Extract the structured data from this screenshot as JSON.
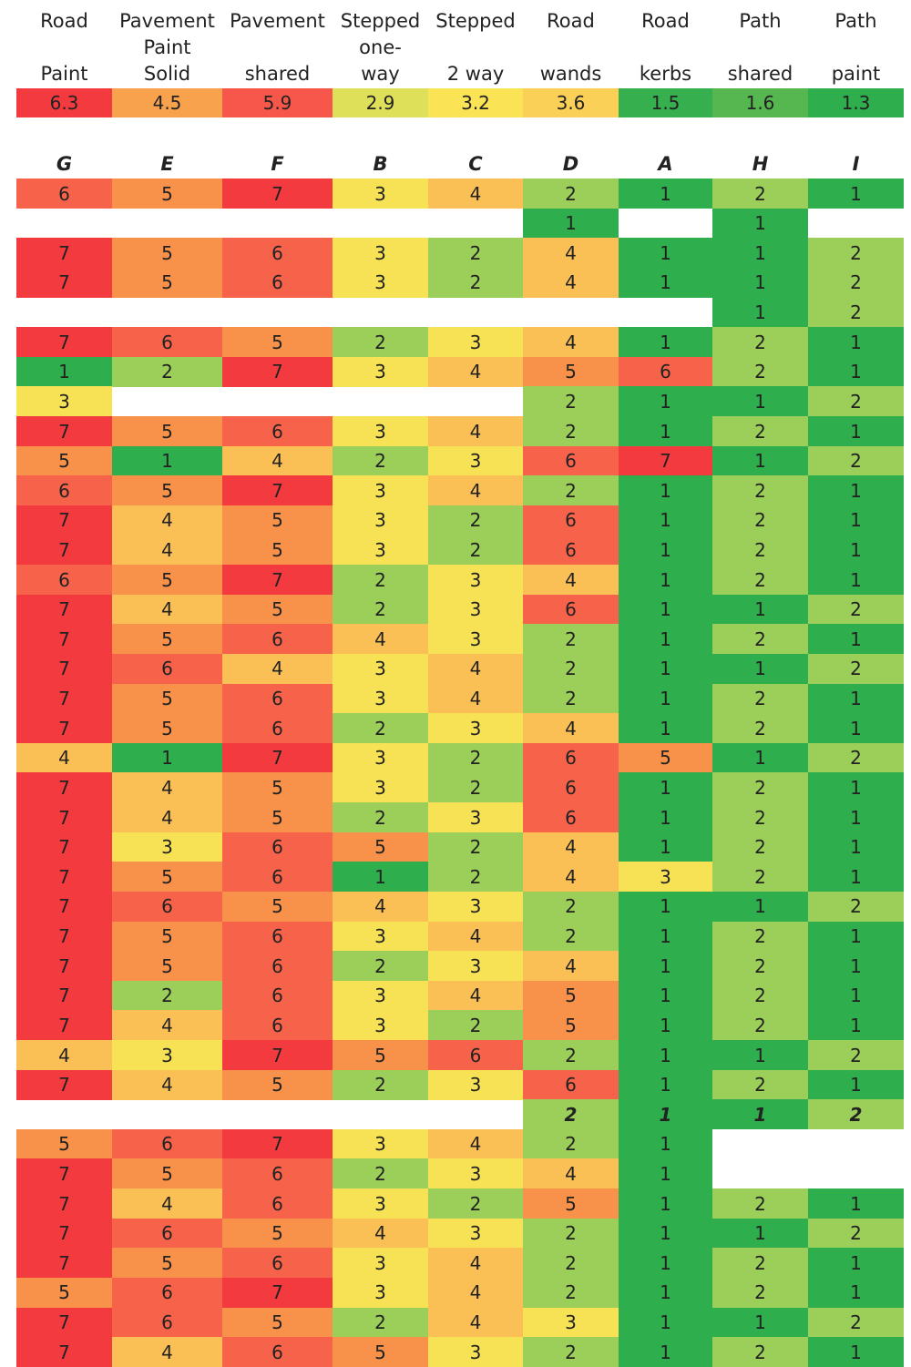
{
  "chart_data": {
    "type": "heatmap",
    "columns": [
      {
        "header": [
          "Road",
          "",
          "Paint"
        ],
        "average": "6.3",
        "letter": "G"
      },
      {
        "header": [
          "Pavement",
          "Paint",
          "Solid"
        ],
        "average": "4.5",
        "letter": "E"
      },
      {
        "header": [
          "Pavement",
          "",
          "shared"
        ],
        "average": "5.9",
        "letter": "F"
      },
      {
        "header": [
          "Stepped",
          "one-",
          "way"
        ],
        "average": "2.9",
        "letter": "B"
      },
      {
        "header": [
          "Stepped",
          "",
          "2 way"
        ],
        "average": "3.2",
        "letter": "C"
      },
      {
        "header": [
          "Road",
          "",
          "wands"
        ],
        "average": "3.6",
        "letter": "D"
      },
      {
        "header": [
          "Road",
          "",
          "kerbs"
        ],
        "average": "1.5",
        "letter": "A"
      },
      {
        "header": [
          "Path",
          "",
          "shared"
        ],
        "average": "1.6",
        "letter": "H"
      },
      {
        "header": [
          "Path",
          "",
          "paint"
        ],
        "average": "1.3",
        "letter": "I"
      }
    ],
    "rows": [
      [
        6,
        5,
        7,
        3,
        4,
        2,
        1,
        2,
        1
      ],
      [
        null,
        null,
        null,
        null,
        null,
        1,
        null,
        1,
        null
      ],
      [
        7,
        5,
        6,
        3,
        2,
        4,
        1,
        1,
        2
      ],
      [
        7,
        5,
        6,
        3,
        2,
        4,
        1,
        1,
        2
      ],
      [
        null,
        null,
        null,
        null,
        null,
        null,
        null,
        1,
        2
      ],
      [
        7,
        6,
        5,
        2,
        3,
        4,
        1,
        2,
        1
      ],
      [
        1,
        2,
        7,
        3,
        4,
        5,
        6,
        2,
        1
      ],
      [
        3,
        null,
        null,
        null,
        null,
        2,
        1,
        1,
        2
      ],
      [
        7,
        5,
        6,
        3,
        4,
        2,
        1,
        2,
        1
      ],
      [
        5,
        1,
        4,
        2,
        3,
        6,
        7,
        1,
        2
      ],
      [
        6,
        5,
        7,
        3,
        4,
        2,
        1,
        2,
        1
      ],
      [
        7,
        4,
        5,
        3,
        2,
        6,
        1,
        2,
        1
      ],
      [
        7,
        4,
        5,
        3,
        2,
        6,
        1,
        2,
        1
      ],
      [
        6,
        5,
        7,
        2,
        3,
        4,
        1,
        2,
        1
      ],
      [
        7,
        4,
        5,
        2,
        3,
        6,
        1,
        1,
        2
      ],
      [
        7,
        5,
        6,
        4,
        3,
        2,
        1,
        2,
        1
      ],
      [
        7,
        6,
        4,
        3,
        4,
        2,
        1,
        1,
        2
      ],
      [
        7,
        5,
        6,
        3,
        4,
        2,
        1,
        2,
        1
      ],
      [
        7,
        5,
        6,
        2,
        3,
        4,
        1,
        2,
        1
      ],
      [
        4,
        1,
        7,
        3,
        2,
        6,
        5,
        1,
        2
      ],
      [
        7,
        4,
        5,
        3,
        2,
        6,
        1,
        2,
        1
      ],
      [
        7,
        4,
        5,
        2,
        3,
        6,
        1,
        2,
        1
      ],
      [
        7,
        3,
        6,
        5,
        2,
        4,
        1,
        2,
        1
      ],
      [
        7,
        5,
        6,
        1,
        2,
        4,
        3,
        2,
        1
      ],
      [
        7,
        6,
        5,
        4,
        3,
        2,
        1,
        1,
        2
      ],
      [
        7,
        5,
        6,
        3,
        4,
        2,
        1,
        2,
        1
      ],
      [
        7,
        5,
        6,
        2,
        3,
        4,
        1,
        2,
        1
      ],
      [
        7,
        2,
        6,
        3,
        4,
        5,
        1,
        2,
        1
      ],
      [
        7,
        4,
        6,
        3,
        2,
        5,
        1,
        2,
        1
      ],
      [
        4,
        3,
        7,
        5,
        6,
        2,
        1,
        1,
        2
      ],
      [
        7,
        4,
        5,
        2,
        3,
        6,
        1,
        2,
        1
      ],
      [
        null,
        null,
        null,
        null,
        null,
        2,
        1,
        1,
        2
      ],
      [
        5,
        6,
        7,
        3,
        4,
        2,
        1,
        null,
        null
      ],
      [
        7,
        5,
        6,
        2,
        3,
        4,
        1,
        null,
        null
      ],
      [
        7,
        4,
        6,
        3,
        2,
        5,
        1,
        2,
        1
      ],
      [
        7,
        6,
        5,
        4,
        3,
        2,
        1,
        1,
        2
      ],
      [
        7,
        5,
        6,
        3,
        4,
        2,
        1,
        2,
        1
      ],
      [
        5,
        6,
        7,
        3,
        4,
        2,
        1,
        2,
        1
      ],
      [
        7,
        6,
        5,
        2,
        4,
        3,
        1,
        1,
        2
      ],
      [
        7,
        4,
        6,
        5,
        3,
        2,
        1,
        2,
        1
      ]
    ],
    "emphasized_row": 31,
    "value_range": [
      1,
      7
    ]
  },
  "colors": {
    "1": "#2fae4e",
    "2": "#9bcf5a",
    "3": "#f7e256",
    "4": "#fbc055",
    "5": "#f89149",
    "6": "#f7634a",
    "7": "#f33a3e",
    "avg": {
      "6.3": "#f33a3e",
      "4.5": "#f9a24e",
      "5.9": "#f6574a",
      "2.9": "#dfe05a",
      "3.2": "#fbe356",
      "3.6": "#fbd057",
      "1.5": "#36b04f",
      "1.6": "#56b650",
      "1.3": "#2fae4e"
    }
  }
}
